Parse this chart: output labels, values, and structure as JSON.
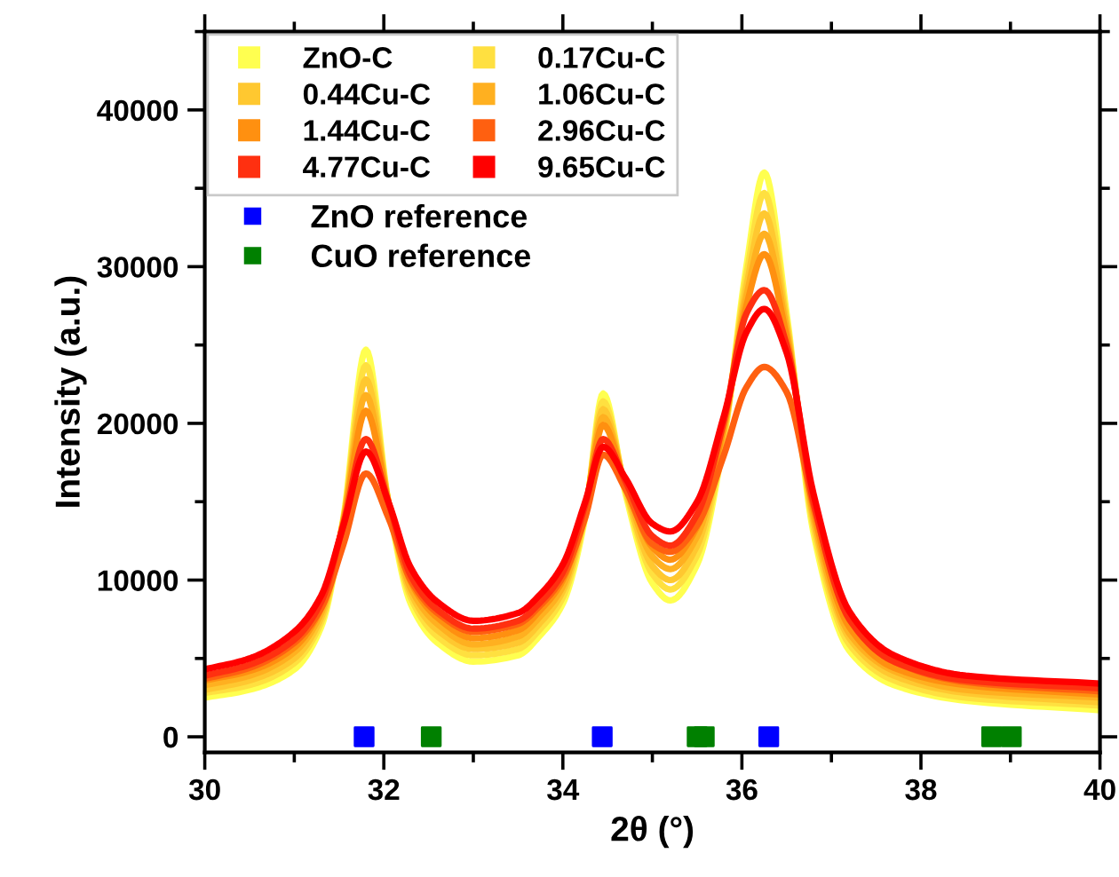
{
  "chart_data": {
    "type": "line",
    "xlabel": "2θ (°)",
    "ylabel": "Intensity (a.u.)",
    "xlim": [
      30,
      40
    ],
    "xticks": [
      30,
      32,
      34,
      36,
      38,
      40
    ],
    "ylim": [
      -1000,
      45000
    ],
    "yticks": [
      0,
      10000,
      20000,
      30000,
      40000
    ],
    "x": [
      30,
      30.5,
      31,
      31.3,
      31.55,
      31.8,
      32.05,
      32.3,
      32.6,
      33,
      33.5,
      33.75,
      34,
      34.25,
      34.45,
      34.7,
      35,
      35.2,
      35.5,
      35.8,
      36.05,
      36.25,
      36.5,
      36.8,
      37.2,
      37.7,
      38.5,
      40
    ],
    "legend": "top left",
    "grid": false,
    "line_style": "solid",
    "marker": "none",
    "series": [
      {
        "name": "ZnO-C",
        "color": "#ffff50",
        "values": [
          2500,
          3000,
          4300,
          7000,
          14000,
          24700,
          15000,
          8500,
          6000,
          4800,
          5200,
          6500,
          8500,
          14000,
          21900,
          15500,
          9800,
          8700,
          11000,
          19000,
          30000,
          36000,
          27000,
          13000,
          5500,
          3300,
          2300,
          1700
        ]
      },
      {
        "name": "0.17Cu-C",
        "color": "#ffe040",
        "values": [
          2800,
          3300,
          4700,
          7300,
          13900,
          23700,
          15000,
          8900,
          6400,
          5200,
          5600,
          6900,
          8900,
          14200,
          21400,
          15700,
          10400,
          9400,
          11600,
          19200,
          29400,
          34700,
          26600,
          13400,
          5900,
          3600,
          2500,
          2000
        ]
      },
      {
        "name": "0.44Cu-C",
        "color": "#ffc830",
        "values": [
          3000,
          3600,
          5000,
          7600,
          13800,
          22800,
          15000,
          9200,
          6800,
          5600,
          6000,
          7300,
          9300,
          14300,
          20900,
          15800,
          10900,
          10000,
          12200,
          19500,
          28700,
          33400,
          26300,
          13800,
          6300,
          3900,
          2800,
          2200
        ]
      },
      {
        "name": "1.06Cu-C",
        "color": "#ffb020",
        "values": [
          3300,
          3900,
          5400,
          7900,
          13800,
          21800,
          15000,
          9500,
          7200,
          5900,
          6400,
          7700,
          9600,
          14500,
          20400,
          16000,
          11500,
          10700,
          12800,
          19700,
          28100,
          32100,
          25900,
          14100,
          6600,
          4200,
          3000,
          2500
        ]
      },
      {
        "name": "1.44Cu-C",
        "color": "#ff9010",
        "values": [
          3600,
          4200,
          5700,
          8200,
          13700,
          20800,
          15000,
          9900,
          7600,
          6300,
          6800,
          8100,
          10000,
          14600,
          19900,
          16100,
          12100,
          11300,
          13400,
          19900,
          27500,
          30800,
          25500,
          14500,
          7000,
          4400,
          3300,
          2700
        ]
      },
      {
        "name": "2.96Cu-C",
        "color": "#ff6010",
        "values": [
          3700,
          4400,
          6000,
          8200,
          12300,
          16800,
          14000,
          10000,
          7900,
          6700,
          7200,
          8400,
          10200,
          14000,
          18000,
          15800,
          12300,
          11800,
          13500,
          18000,
          22300,
          23600,
          22000,
          14800,
          7600,
          4800,
          3500,
          2900
        ]
      },
      {
        "name": "4.77Cu-C",
        "color": "#ff3010",
        "values": [
          3900,
          4600,
          6200,
          8600,
          13600,
          19000,
          15000,
          10300,
          8100,
          6900,
          7400,
          8600,
          10500,
          14800,
          19000,
          16300,
          12800,
          12200,
          14200,
          20200,
          27000,
          28500,
          25000,
          15000,
          7500,
          4800,
          3600,
          3100
        ]
      },
      {
        "name": "9.65Cu-C",
        "color": "#ff0000",
        "values": [
          4300,
          5000,
          6700,
          9000,
          13500,
          18200,
          15000,
          10800,
          8600,
          7400,
          7900,
          9100,
          11000,
          15000,
          18500,
          16500,
          13600,
          13100,
          15000,
          20500,
          25800,
          27300,
          24500,
          15500,
          8000,
          5200,
          3900,
          3400
        ]
      },
      {
        "name": "ZnO reference",
        "type": "scatter",
        "marker": "square",
        "color": "#0000ff",
        "x": [
          31.78,
          34.44,
          36.3
        ],
        "values": [
          0,
          0,
          0
        ]
      },
      {
        "name": "CuO reference",
        "type": "scatter",
        "marker": "square",
        "color": "#008000",
        "x": [
          32.53,
          35.5,
          35.58,
          38.79,
          39.01
        ],
        "values": [
          0,
          0,
          0,
          0,
          0
        ]
      }
    ]
  }
}
